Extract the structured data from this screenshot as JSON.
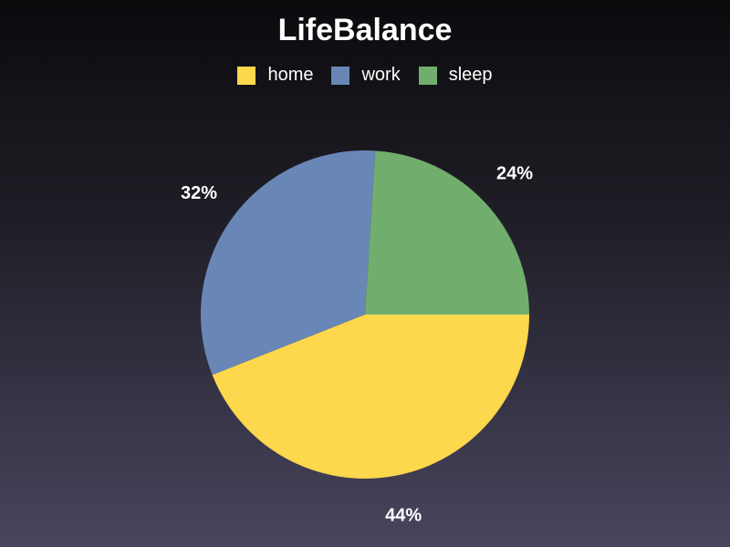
{
  "chart_data": {
    "type": "pie",
    "title": "LifeBalance",
    "legend_position": "top",
    "categories": [
      "home",
      "work",
      "sleep"
    ],
    "values": [
      44,
      32,
      24
    ],
    "labels": [
      "44%",
      "32%",
      "24%"
    ],
    "colors": [
      "#fdd74c",
      "#6887b6",
      "#71ae6d"
    ]
  }
}
